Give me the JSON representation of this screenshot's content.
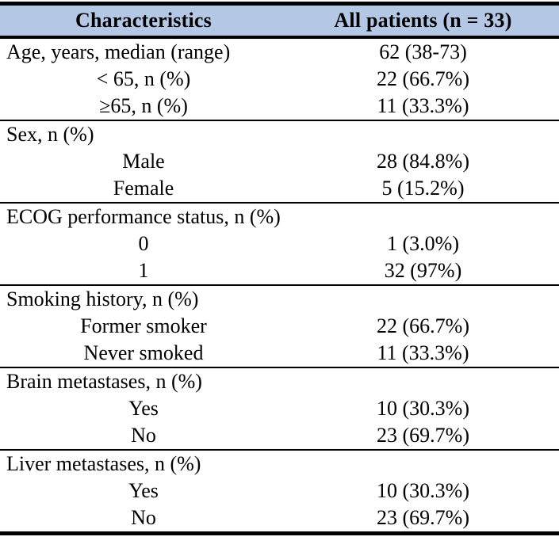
{
  "table": {
    "title_semantic": "Patient baseline characteristics table",
    "colors": {
      "header_bg": "#b4c7e4",
      "border": "#000000",
      "text": "#000000"
    },
    "header": {
      "col1": "Characteristics",
      "col2": "All patients (n = 33)"
    },
    "sections": [
      {
        "rows": [
          {
            "label": "Age, years, median (range)",
            "value": "62 (38-73)"
          },
          {
            "label": "< 65, n (%)",
            "value": "22 (66.7%)"
          },
          {
            "label": "≥65, n (%)",
            "value": "11 (33.3%)"
          }
        ]
      },
      {
        "rows": [
          {
            "label": "Sex, n (%)",
            "value": ""
          },
          {
            "label": "Male",
            "value": "28 (84.8%)"
          },
          {
            "label": "Female",
            "value": "5 (15.2%)"
          }
        ]
      },
      {
        "rows": [
          {
            "label": "ECOG performance status, n (%)",
            "value": ""
          },
          {
            "label": "0",
            "value": "1 (3.0%)"
          },
          {
            "label": "1",
            "value": "32 (97%)"
          }
        ]
      },
      {
        "rows": [
          {
            "label": "Smoking history, n (%)",
            "value": ""
          },
          {
            "label": "Former smoker",
            "value": "22 (66.7%)"
          },
          {
            "label": "Never smoked",
            "value": "11 (33.3%)"
          }
        ]
      },
      {
        "rows": [
          {
            "label": "Brain metastases, n (%)",
            "value": ""
          },
          {
            "label": "Yes",
            "value": "10 (30.3%)"
          },
          {
            "label": "No",
            "value": "23 (69.7%)"
          }
        ]
      },
      {
        "rows": [
          {
            "label": "Liver metastases, n (%)",
            "value": ""
          },
          {
            "label": "Yes",
            "value": "10 (30.3%)"
          },
          {
            "label": "No",
            "value": "23 (69.7%)"
          }
        ]
      }
    ]
  }
}
